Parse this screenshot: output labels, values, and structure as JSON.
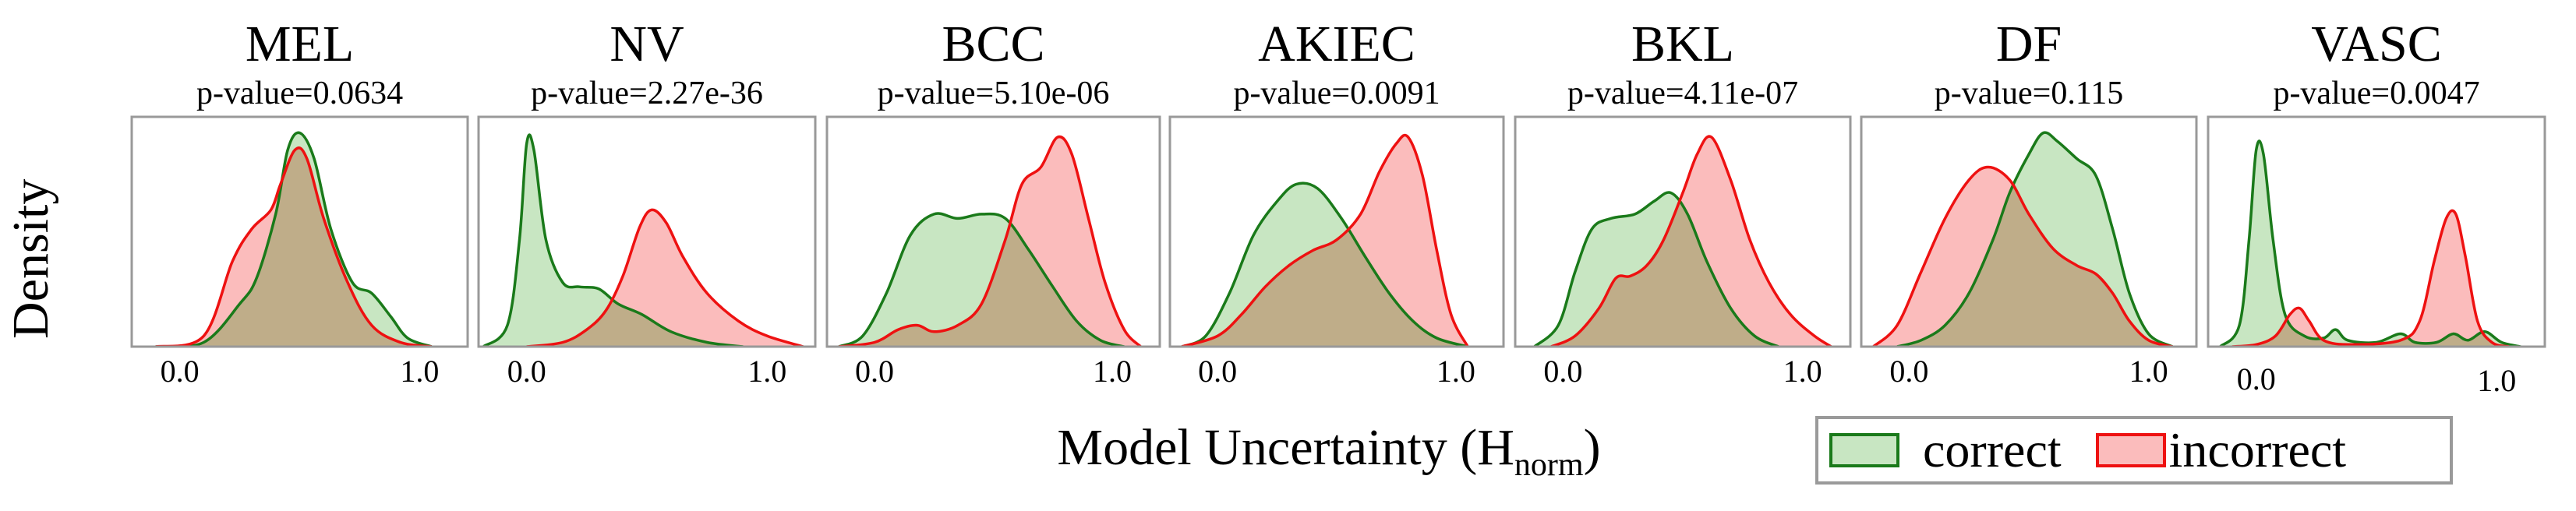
{
  "chart_data": {
    "type": "area",
    "title": "",
    "ylabel": "Density",
    "xlabel": "Model Uncertainty (H",
    "xlabel_sub": "norm",
    "xlabel_close": ")",
    "xlim": [
      -0.2,
      1.2
    ],
    "xticks": [
      "0.0",
      "1.0"
    ],
    "legend": {
      "position": "bottom-right",
      "entries": [
        {
          "label": "correct",
          "fill": "#c8e6c2",
          "stroke": "#1a7a1a"
        },
        {
          "label": "incorrect",
          "fill": "#fbbcbc",
          "stroke": "#ee1111"
        }
      ]
    },
    "colors": {
      "correct_fill": "#c8e6c2",
      "correct_stroke": "#1a7a1a",
      "incorrect_fill": "#fbbcbc",
      "incorrect_stroke": "#ee1111",
      "overlap_fill": "#bfad89",
      "frame": "#999999"
    },
    "panels": [
      {
        "title": "MEL",
        "pvalue": "p-value=0.0634",
        "correct": [
          [
            -0.1,
            0
          ],
          [
            0.1,
            0.02
          ],
          [
            0.25,
            0.2
          ],
          [
            0.32,
            0.32
          ],
          [
            0.4,
            0.62
          ],
          [
            0.45,
            0.92
          ],
          [
            0.5,
            1.0
          ],
          [
            0.56,
            0.88
          ],
          [
            0.63,
            0.55
          ],
          [
            0.72,
            0.3
          ],
          [
            0.8,
            0.25
          ],
          [
            0.88,
            0.14
          ],
          [
            0.95,
            0.04
          ],
          [
            1.05,
            0
          ]
        ],
        "incorrect": [
          [
            -0.1,
            0
          ],
          [
            0.1,
            0.05
          ],
          [
            0.22,
            0.4
          ],
          [
            0.3,
            0.55
          ],
          [
            0.38,
            0.64
          ],
          [
            0.42,
            0.76
          ],
          [
            0.48,
            0.92
          ],
          [
            0.53,
            0.88
          ],
          [
            0.6,
            0.6
          ],
          [
            0.7,
            0.3
          ],
          [
            0.8,
            0.1
          ],
          [
            0.92,
            0.02
          ],
          [
            1.05,
            0
          ]
        ]
      },
      {
        "title": "NV",
        "pvalue": "p-value=2.27e-36",
        "correct": [
          [
            -0.18,
            0
          ],
          [
            -0.08,
            0.1
          ],
          [
            -0.03,
            0.5
          ],
          [
            0.0,
            0.95
          ],
          [
            0.03,
            0.92
          ],
          [
            0.08,
            0.5
          ],
          [
            0.15,
            0.3
          ],
          [
            0.22,
            0.28
          ],
          [
            0.3,
            0.27
          ],
          [
            0.38,
            0.2
          ],
          [
            0.48,
            0.15
          ],
          [
            0.6,
            0.07
          ],
          [
            0.75,
            0.02
          ],
          [
            0.9,
            0
          ]
        ],
        "incorrect": [
          [
            0.0,
            0
          ],
          [
            0.15,
            0.02
          ],
          [
            0.25,
            0.08
          ],
          [
            0.33,
            0.17
          ],
          [
            0.4,
            0.33
          ],
          [
            0.47,
            0.56
          ],
          [
            0.52,
            0.64
          ],
          [
            0.58,
            0.58
          ],
          [
            0.65,
            0.42
          ],
          [
            0.75,
            0.25
          ],
          [
            0.88,
            0.12
          ],
          [
            1.0,
            0.05
          ],
          [
            1.15,
            0.0
          ]
        ]
      },
      {
        "title": "BCC",
        "pvalue": "p-value=5.10e-06",
        "correct": [
          [
            -0.15,
            0
          ],
          [
            -0.05,
            0.05
          ],
          [
            0.05,
            0.25
          ],
          [
            0.15,
            0.52
          ],
          [
            0.25,
            0.62
          ],
          [
            0.35,
            0.6
          ],
          [
            0.45,
            0.62
          ],
          [
            0.55,
            0.6
          ],
          [
            0.65,
            0.45
          ],
          [
            0.75,
            0.28
          ],
          [
            0.85,
            0.12
          ],
          [
            0.95,
            0.03
          ],
          [
            1.05,
            0
          ]
        ],
        "incorrect": [
          [
            -0.15,
            0
          ],
          [
            0.0,
            0.02
          ],
          [
            0.1,
            0.08
          ],
          [
            0.18,
            0.1
          ],
          [
            0.25,
            0.07
          ],
          [
            0.35,
            0.1
          ],
          [
            0.45,
            0.2
          ],
          [
            0.55,
            0.5
          ],
          [
            0.62,
            0.76
          ],
          [
            0.7,
            0.84
          ],
          [
            0.77,
            0.98
          ],
          [
            0.83,
            0.9
          ],
          [
            0.9,
            0.6
          ],
          [
            0.97,
            0.3
          ],
          [
            1.05,
            0.08
          ],
          [
            1.12,
            0
          ]
        ]
      },
      {
        "title": "AKIEC",
        "pvalue": "p-value=0.0091",
        "correct": [
          [
            -0.15,
            0
          ],
          [
            -0.05,
            0.05
          ],
          [
            0.05,
            0.25
          ],
          [
            0.15,
            0.52
          ],
          [
            0.25,
            0.68
          ],
          [
            0.33,
            0.76
          ],
          [
            0.42,
            0.74
          ],
          [
            0.52,
            0.6
          ],
          [
            0.62,
            0.42
          ],
          [
            0.72,
            0.25
          ],
          [
            0.82,
            0.12
          ],
          [
            0.92,
            0.04
          ],
          [
            1.05,
            0
          ]
        ],
        "incorrect": [
          [
            -0.15,
            0
          ],
          [
            0.0,
            0.05
          ],
          [
            0.1,
            0.15
          ],
          [
            0.2,
            0.28
          ],
          [
            0.3,
            0.38
          ],
          [
            0.4,
            0.45
          ],
          [
            0.5,
            0.5
          ],
          [
            0.6,
            0.62
          ],
          [
            0.68,
            0.82
          ],
          [
            0.75,
            0.95
          ],
          [
            0.8,
            0.98
          ],
          [
            0.86,
            0.8
          ],
          [
            0.92,
            0.45
          ],
          [
            0.98,
            0.15
          ],
          [
            1.05,
            0
          ]
        ]
      },
      {
        "title": "BKL",
        "pvalue": "p-value=4.11e-07",
        "correct": [
          [
            -0.12,
            0
          ],
          [
            -0.02,
            0.1
          ],
          [
            0.05,
            0.35
          ],
          [
            0.12,
            0.55
          ],
          [
            0.2,
            0.6
          ],
          [
            0.3,
            0.62
          ],
          [
            0.38,
            0.68
          ],
          [
            0.45,
            0.72
          ],
          [
            0.52,
            0.62
          ],
          [
            0.6,
            0.4
          ],
          [
            0.7,
            0.18
          ],
          [
            0.8,
            0.05
          ],
          [
            0.9,
            0
          ]
        ],
        "incorrect": [
          [
            -0.05,
            0
          ],
          [
            0.05,
            0.05
          ],
          [
            0.15,
            0.18
          ],
          [
            0.22,
            0.32
          ],
          [
            0.28,
            0.33
          ],
          [
            0.35,
            0.38
          ],
          [
            0.42,
            0.5
          ],
          [
            0.5,
            0.72
          ],
          [
            0.56,
            0.9
          ],
          [
            0.62,
            0.98
          ],
          [
            0.7,
            0.78
          ],
          [
            0.78,
            0.5
          ],
          [
            0.86,
            0.3
          ],
          [
            0.95,
            0.15
          ],
          [
            1.05,
            0.05
          ],
          [
            1.12,
            0
          ]
        ]
      },
      {
        "title": "DF",
        "pvalue": "p-value=0.115",
        "correct": [
          [
            -0.05,
            0
          ],
          [
            0.05,
            0.03
          ],
          [
            0.15,
            0.1
          ],
          [
            0.25,
            0.25
          ],
          [
            0.35,
            0.5
          ],
          [
            0.42,
            0.72
          ],
          [
            0.5,
            0.9
          ],
          [
            0.56,
            1.0
          ],
          [
            0.62,
            0.96
          ],
          [
            0.7,
            0.88
          ],
          [
            0.78,
            0.8
          ],
          [
            0.85,
            0.55
          ],
          [
            0.92,
            0.25
          ],
          [
            1.0,
            0.06
          ],
          [
            1.1,
            0
          ]
        ],
        "incorrect": [
          [
            -0.15,
            0
          ],
          [
            -0.05,
            0.1
          ],
          [
            0.05,
            0.35
          ],
          [
            0.15,
            0.6
          ],
          [
            0.25,
            0.78
          ],
          [
            0.33,
            0.84
          ],
          [
            0.42,
            0.78
          ],
          [
            0.5,
            0.62
          ],
          [
            0.6,
            0.46
          ],
          [
            0.7,
            0.38
          ],
          [
            0.78,
            0.34
          ],
          [
            0.85,
            0.25
          ],
          [
            0.92,
            0.12
          ],
          [
            1.0,
            0.03
          ],
          [
            1.1,
            0
          ]
        ]
      },
      {
        "title": "VASC",
        "pvalue": "p-value=0.0047",
        "correct": [
          [
            -0.15,
            0
          ],
          [
            -0.07,
            0.1
          ],
          [
            -0.03,
            0.5
          ],
          [
            0.0,
            0.92
          ],
          [
            0.03,
            0.9
          ],
          [
            0.07,
            0.5
          ],
          [
            0.12,
            0.15
          ],
          [
            0.2,
            0.05
          ],
          [
            0.28,
            0.04
          ],
          [
            0.33,
            0.08
          ],
          [
            0.38,
            0.03
          ],
          [
            0.5,
            0.02
          ],
          [
            0.6,
            0.06
          ],
          [
            0.66,
            0.02
          ],
          [
            0.75,
            0.02
          ],
          [
            0.82,
            0.06
          ],
          [
            0.88,
            0.03
          ],
          [
            0.95,
            0.07
          ],
          [
            1.02,
            0.02
          ],
          [
            1.1,
            0
          ]
        ],
        "incorrect": [
          [
            -0.1,
            0
          ],
          [
            0.0,
            0.01
          ],
          [
            0.08,
            0.05
          ],
          [
            0.14,
            0.15
          ],
          [
            0.18,
            0.18
          ],
          [
            0.22,
            0.12
          ],
          [
            0.28,
            0.03
          ],
          [
            0.4,
            0.01
          ],
          [
            0.6,
            0.03
          ],
          [
            0.68,
            0.12
          ],
          [
            0.74,
            0.4
          ],
          [
            0.79,
            0.6
          ],
          [
            0.83,
            0.62
          ],
          [
            0.87,
            0.42
          ],
          [
            0.92,
            0.12
          ],
          [
            0.98,
            0.02
          ],
          [
            1.05,
            0
          ]
        ]
      }
    ]
  }
}
